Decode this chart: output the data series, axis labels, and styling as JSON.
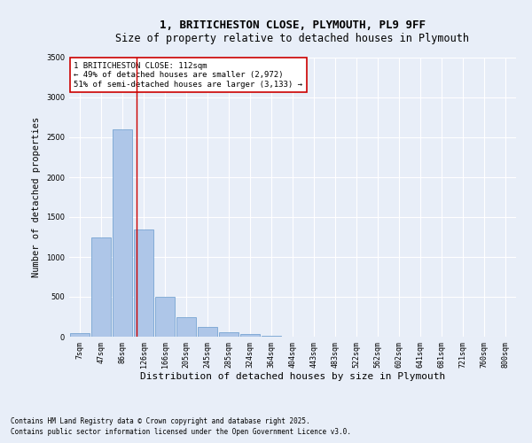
{
  "title_line1": "1, BRITICHESTON CLOSE, PLYMOUTH, PL9 9FF",
  "title_line2": "Size of property relative to detached houses in Plymouth",
  "xlabel": "Distribution of detached houses by size in Plymouth",
  "ylabel": "Number of detached properties",
  "categories": [
    "7sqm",
    "47sqm",
    "86sqm",
    "126sqm",
    "166sqm",
    "205sqm",
    "245sqm",
    "285sqm",
    "324sqm",
    "364sqm",
    "404sqm",
    "443sqm",
    "483sqm",
    "522sqm",
    "562sqm",
    "602sqm",
    "641sqm",
    "681sqm",
    "721sqm",
    "760sqm",
    "800sqm"
  ],
  "values": [
    50,
    1250,
    2600,
    1350,
    500,
    250,
    120,
    55,
    35,
    10,
    5,
    0,
    0,
    0,
    0,
    0,
    0,
    0,
    0,
    0,
    0
  ],
  "bar_color": "#aec6e8",
  "bar_edge_color": "#6699cc",
  "background_color": "#e8eef8",
  "grid_color": "#ffffff",
  "ylim": [
    0,
    3500
  ],
  "yticks": [
    0,
    500,
    1000,
    1500,
    2000,
    2500,
    3000,
    3500
  ],
  "vline_color": "#cc0000",
  "annotation_text": "1 BRITICHESTON CLOSE: 112sqm\n← 49% of detached houses are smaller (2,972)\n51% of semi-detached houses are larger (3,133) →",
  "annotation_box_color": "#ffffff",
  "annotation_box_edge": "#cc0000",
  "footer_line1": "Contains HM Land Registry data © Crown copyright and database right 2025.",
  "footer_line2": "Contains public sector information licensed under the Open Government Licence v3.0.",
  "title_fontsize": 9,
  "subtitle_fontsize": 8.5,
  "tick_fontsize": 6,
  "ylabel_fontsize": 7.5,
  "xlabel_fontsize": 8,
  "annotation_fontsize": 6.5,
  "footer_fontsize": 5.5
}
